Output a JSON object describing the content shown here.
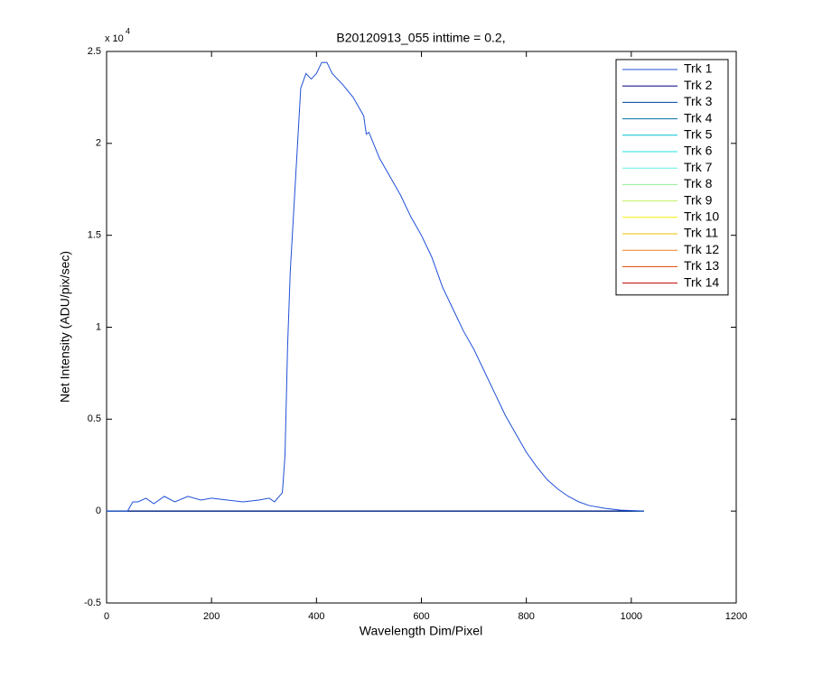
{
  "chart_data": {
    "type": "line",
    "title": "B20120913_055 inttime = 0.2,",
    "xlabel": "Wavelength Dim/Pixel",
    "ylabel": "Net Intensity (ADU/pix/sec)",
    "yscale_label": "x 10",
    "yscale_exponent": "4",
    "xlim": [
      0,
      1200
    ],
    "xticks": [
      0,
      200,
      400,
      600,
      800,
      1000,
      1200
    ],
    "ylim": [
      -0.5,
      2.5
    ],
    "yticks": [
      -0.5,
      0,
      0.5,
      1,
      1.5,
      2,
      2.5
    ],
    "grid": false,
    "legend": "upper right",
    "x": [
      0,
      40,
      50,
      60,
      75,
      90,
      110,
      130,
      155,
      180,
      200,
      230,
      260,
      290,
      310,
      320,
      335,
      340,
      345,
      350,
      360,
      370,
      380,
      390,
      400,
      410,
      420,
      430,
      450,
      470,
      490,
      495,
      500,
      520,
      540,
      560,
      580,
      600,
      620,
      640,
      660,
      680,
      700,
      720,
      740,
      760,
      780,
      800,
      820,
      840,
      860,
      880,
      900,
      920,
      950,
      980,
      1024
    ],
    "series": [
      {
        "name": "Trk 1",
        "color": "#1f4fd8",
        "values": [
          0,
          0,
          0.05,
          0.05,
          0.07,
          0.04,
          0.08,
          0.05,
          0.08,
          0.06,
          0.07,
          0.06,
          0.05,
          0.06,
          0.07,
          0.05,
          0.1,
          0.3,
          0.9,
          1.3,
          1.8,
          2.3,
          2.38,
          2.35,
          2.38,
          2.44,
          2.44,
          2.38,
          2.32,
          2.25,
          2.15,
          2.05,
          2.06,
          1.92,
          1.82,
          1.72,
          1.6,
          1.5,
          1.38,
          1.22,
          1.1,
          0.98,
          0.88,
          0.76,
          0.64,
          0.52,
          0.42,
          0.32,
          0.24,
          0.17,
          0.12,
          0.08,
          0.05,
          0.03,
          0.015,
          0.005,
          0
        ]
      },
      {
        "name": "Trk 2",
        "color": "#00007f",
        "values": [
          0,
          0,
          0,
          0,
          0,
          0,
          0,
          0,
          0,
          0,
          0,
          0,
          0,
          0,
          0,
          0,
          0,
          0,
          0,
          0,
          0,
          0,
          0,
          0,
          0,
          0,
          0,
          0,
          0,
          0,
          0,
          0,
          0,
          0,
          0,
          0,
          0,
          0,
          0,
          0,
          0,
          0,
          0,
          0,
          0,
          0,
          0,
          0,
          0,
          0,
          0,
          0,
          0,
          0,
          0,
          0,
          0
        ]
      },
      {
        "name": "Trk 3",
        "color": "#0040a0",
        "values": [
          0,
          0,
          0,
          0,
          0,
          0,
          0,
          0,
          0,
          0,
          0,
          0,
          0,
          0,
          0,
          0,
          0,
          0,
          0,
          0,
          0,
          0,
          0,
          0,
          0,
          0,
          0,
          0,
          0,
          0,
          0,
          0,
          0,
          0,
          0,
          0,
          0,
          0,
          0,
          0,
          0,
          0,
          0,
          0,
          0,
          0,
          0,
          0,
          0,
          0,
          0,
          0,
          0,
          0,
          0,
          0,
          0
        ]
      },
      {
        "name": "Trk 4",
        "color": "#00709f",
        "values": [
          0,
          0,
          0,
          0,
          0,
          0,
          0,
          0,
          0,
          0,
          0,
          0,
          0,
          0,
          0,
          0,
          0,
          0,
          0,
          0,
          0,
          0,
          0,
          0,
          0,
          0,
          0,
          0,
          0,
          0,
          0,
          0,
          0,
          0,
          0,
          0,
          0,
          0,
          0,
          0,
          0,
          0,
          0,
          0,
          0,
          0,
          0,
          0,
          0,
          0,
          0,
          0,
          0,
          0,
          0,
          0,
          0
        ]
      },
      {
        "name": "Trk 5",
        "color": "#00c0d0",
        "values": [
          0,
          0,
          0,
          0,
          0,
          0,
          0,
          0,
          0,
          0,
          0,
          0,
          0,
          0,
          0,
          0,
          0,
          0,
          0,
          0,
          0,
          0,
          0,
          0,
          0,
          0,
          0,
          0,
          0,
          0,
          0,
          0,
          0,
          0,
          0,
          0,
          0,
          0,
          0,
          0,
          0,
          0,
          0,
          0,
          0,
          0,
          0,
          0,
          0,
          0,
          0,
          0,
          0,
          0,
          0,
          0,
          0
        ]
      },
      {
        "name": "Trk 6",
        "color": "#20e0e0",
        "values": [
          0,
          0,
          0,
          0,
          0,
          0,
          0,
          0,
          0,
          0,
          0,
          0,
          0,
          0,
          0,
          0,
          0,
          0,
          0,
          0,
          0,
          0,
          0,
          0,
          0,
          0,
          0,
          0,
          0,
          0,
          0,
          0,
          0,
          0,
          0,
          0,
          0,
          0,
          0,
          0,
          0,
          0,
          0,
          0,
          0,
          0,
          0,
          0,
          0,
          0,
          0,
          0,
          0,
          0,
          0,
          0,
          0
        ]
      },
      {
        "name": "Trk 7",
        "color": "#60f0e0",
        "values": [
          0,
          0,
          0,
          0,
          0,
          0,
          0,
          0,
          0,
          0,
          0,
          0,
          0,
          0,
          0,
          0,
          0,
          0,
          0,
          0,
          0,
          0,
          0,
          0,
          0,
          0,
          0,
          0,
          0,
          0,
          0,
          0,
          0,
          0,
          0,
          0,
          0,
          0,
          0,
          0,
          0,
          0,
          0,
          0,
          0,
          0,
          0,
          0,
          0,
          0,
          0,
          0,
          0,
          0,
          0,
          0,
          0
        ]
      },
      {
        "name": "Trk 8",
        "color": "#90f090",
        "values": [
          0,
          0,
          0,
          0,
          0,
          0,
          0,
          0,
          0,
          0,
          0,
          0,
          0,
          0,
          0,
          0,
          0,
          0,
          0,
          0,
          0,
          0,
          0,
          0,
          0,
          0,
          0,
          0,
          0,
          0,
          0,
          0,
          0,
          0,
          0,
          0,
          0,
          0,
          0,
          0,
          0,
          0,
          0,
          0,
          0,
          0,
          0,
          0,
          0,
          0,
          0,
          0,
          0,
          0,
          0,
          0,
          0
        ]
      },
      {
        "name": "Trk 9",
        "color": "#c0f060",
        "values": [
          0,
          0,
          0,
          0,
          0,
          0,
          0,
          0,
          0,
          0,
          0,
          0,
          0,
          0,
          0,
          0,
          0,
          0,
          0,
          0,
          0,
          0,
          0,
          0,
          0,
          0,
          0,
          0,
          0,
          0,
          0,
          0,
          0,
          0,
          0,
          0,
          0,
          0,
          0,
          0,
          0,
          0,
          0,
          0,
          0,
          0,
          0,
          0,
          0,
          0,
          0,
          0,
          0,
          0,
          0,
          0,
          0
        ]
      },
      {
        "name": "Trk 10",
        "color": "#f0f000",
        "values": [
          0,
          0,
          0,
          0,
          0,
          0,
          0,
          0,
          0,
          0,
          0,
          0,
          0,
          0,
          0,
          0,
          0,
          0,
          0,
          0,
          0,
          0,
          0,
          0,
          0,
          0,
          0,
          0,
          0,
          0,
          0,
          0,
          0,
          0,
          0,
          0,
          0,
          0,
          0,
          0,
          0,
          0,
          0,
          0,
          0,
          0,
          0,
          0,
          0,
          0,
          0,
          0,
          0,
          0,
          0,
          0,
          0
        ]
      },
      {
        "name": "Trk 11",
        "color": "#f0c000",
        "values": [
          0,
          0,
          0,
          0,
          0,
          0,
          0,
          0,
          0,
          0,
          0,
          0,
          0,
          0,
          0,
          0,
          0,
          0,
          0,
          0,
          0,
          0,
          0,
          0,
          0,
          0,
          0,
          0,
          0,
          0,
          0,
          0,
          0,
          0,
          0,
          0,
          0,
          0,
          0,
          0,
          0,
          0,
          0,
          0,
          0,
          0,
          0,
          0,
          0,
          0,
          0,
          0,
          0,
          0,
          0,
          0,
          0
        ]
      },
      {
        "name": "Trk 12",
        "color": "#f08020",
        "values": [
          0,
          0,
          0,
          0,
          0,
          0,
          0,
          0,
          0,
          0,
          0,
          0,
          0,
          0,
          0,
          0,
          0,
          0,
          0,
          0,
          0,
          0,
          0,
          0,
          0,
          0,
          0,
          0,
          0,
          0,
          0,
          0,
          0,
          0,
          0,
          0,
          0,
          0,
          0,
          0,
          0,
          0,
          0,
          0,
          0,
          0,
          0,
          0,
          0,
          0,
          0,
          0,
          0,
          0,
          0,
          0,
          0
        ]
      },
      {
        "name": "Trk 13",
        "color": "#e04000",
        "values": [
          0,
          0,
          0,
          0,
          0,
          0,
          0,
          0,
          0,
          0,
          0,
          0,
          0,
          0,
          0,
          0,
          0,
          0,
          0,
          0,
          0,
          0,
          0,
          0,
          0,
          0,
          0,
          0,
          0,
          0,
          0,
          0,
          0,
          0,
          0,
          0,
          0,
          0,
          0,
          0,
          0,
          0,
          0,
          0,
          0,
          0,
          0,
          0,
          0,
          0,
          0,
          0,
          0,
          0,
          0,
          0,
          0
        ]
      },
      {
        "name": "Trk 14",
        "color": "#c00000",
        "values": [
          0,
          0,
          0,
          0,
          0,
          0,
          0,
          0,
          0,
          0,
          0,
          0,
          0,
          0,
          0,
          0,
          0,
          0,
          0,
          0,
          0,
          0,
          0,
          0,
          0,
          0,
          0,
          0,
          0,
          0,
          0,
          0,
          0,
          0,
          0,
          0,
          0,
          0,
          0,
          0,
          0,
          0,
          0,
          0,
          0,
          0,
          0,
          0,
          0,
          0,
          0,
          0,
          0,
          0,
          0,
          0,
          0
        ]
      }
    ]
  }
}
